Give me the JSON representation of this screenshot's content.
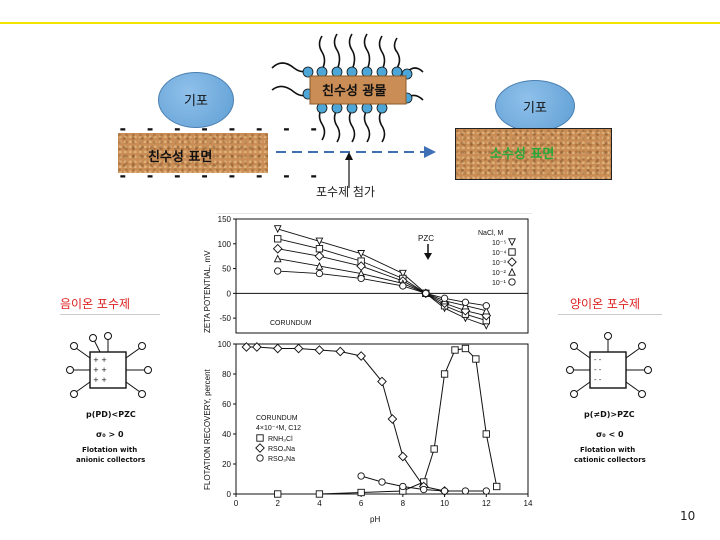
{
  "slide": {
    "page_number": "10"
  },
  "top_diagram": {
    "left_bubble_label": "기포",
    "right_bubble_label": "기포",
    "mineral_label": "친수성 광물",
    "hydrophilic_surface_label": "친수성 표면",
    "hydrophobic_surface_label": "소수성 표면",
    "arrow_caption": "포수제 첨가",
    "surface_dashes": "- - - - - - - -",
    "colors": {
      "bubble": "#6fa8dc",
      "surface": "#c98d55",
      "green_text": "#27a83a",
      "arrow": "#3f6fb5"
    }
  },
  "side_labels": {
    "anionic": "음이온 포수제",
    "cationic": "양이온 포수제"
  },
  "left_panel": {
    "condition": "p(PD)<PZC",
    "sigma": "σ₀ > 0",
    "caption_line1": "Flotation with",
    "caption_line2": "anionic collectors"
  },
  "right_panel": {
    "condition": "p(≠D)>PZC",
    "sigma": "σ₀ < 0",
    "caption_line1": "Flotation with",
    "caption_line2": "cationic collectors"
  },
  "zeta_chart": {
    "ylabel": "ZETA POTENTIAL, mV",
    "yticks": [
      "150",
      "100",
      "50",
      "0",
      "-50"
    ],
    "annotation": "PZC",
    "inner_label": "CORUNDUM",
    "legend_title": "NaCl, M",
    "legend": [
      "10⁻⁵",
      "10⁻⁴",
      "10⁻³",
      "10⁻²",
      "10⁻¹"
    ]
  },
  "recovery_chart": {
    "ylabel": "FLOTATION RECOVERY, percent",
    "yticks": [
      "100",
      "80",
      "60",
      "40",
      "20",
      "0"
    ],
    "xticks": [
      "0",
      "2",
      "4",
      "6",
      "8",
      "10",
      "12",
      "14"
    ],
    "xlabel": "pH",
    "inner_label1": "CORUNDUM",
    "inner_label2": "4×10⁻⁴M, C12",
    "legend": [
      "RNH₃Cl",
      "RSO₄Na",
      "RSO₃Na"
    ]
  },
  "chart_data": [
    {
      "type": "line",
      "ylabel": "ZETA POTENTIAL, mV",
      "ylim": [
        -80,
        150
      ],
      "xlim": [
        0,
        14
      ],
      "series": [
        {
          "name": "10⁻⁵",
          "x": [
            2,
            4,
            6,
            8,
            9.1,
            10,
            11,
            12
          ],
          "values": [
            130,
            105,
            80,
            40,
            0,
            -30,
            -50,
            -65
          ]
        },
        {
          "name": "10⁻⁴",
          "x": [
            2,
            4,
            6,
            8,
            9.1,
            10,
            11,
            12
          ],
          "values": [
            110,
            90,
            65,
            30,
            0,
            -25,
            -42,
            -55
          ]
        },
        {
          "name": "10⁻³",
          "x": [
            2,
            4,
            6,
            8,
            9.1,
            10,
            11,
            12
          ],
          "values": [
            90,
            75,
            55,
            25,
            0,
            -20,
            -35,
            -45
          ]
        },
        {
          "name": "10⁻²",
          "x": [
            2,
            4,
            6,
            8,
            9.1,
            10,
            11,
            12
          ],
          "values": [
            70,
            55,
            40,
            20,
            0,
            -15,
            -25,
            -35
          ]
        },
        {
          "name": "10⁻¹",
          "x": [
            2,
            4,
            6,
            8,
            9.1,
            10,
            11,
            12
          ],
          "values": [
            45,
            40,
            30,
            15,
            0,
            -10,
            -18,
            -25
          ]
        }
      ]
    },
    {
      "type": "line",
      "xlabel": "pH",
      "ylabel": "FLOTATION RECOVERY, percent",
      "xlim": [
        0,
        14
      ],
      "ylim": [
        0,
        100
      ],
      "series": [
        {
          "name": "RNH₃Cl",
          "x": [
            2,
            4,
            6,
            8,
            9,
            9.5,
            10,
            10.5,
            11,
            11.5,
            12,
            12.5
          ],
          "values": [
            0,
            0,
            1,
            2,
            8,
            30,
            80,
            96,
            97,
            90,
            40,
            5
          ]
        },
        {
          "name": "RSO₄Na",
          "x": [
            0.5,
            1,
            2,
            3,
            4,
            5,
            6,
            7,
            7.5,
            8,
            9,
            10
          ],
          "values": [
            98,
            98,
            97,
            97,
            96,
            95,
            92,
            75,
            50,
            25,
            5,
            2
          ]
        },
        {
          "name": "RSO₃Na",
          "x": [
            6,
            7,
            8,
            9,
            10,
            11,
            12
          ],
          "values": [
            12,
            8,
            5,
            3,
            2,
            2,
            2
          ]
        }
      ]
    }
  ]
}
